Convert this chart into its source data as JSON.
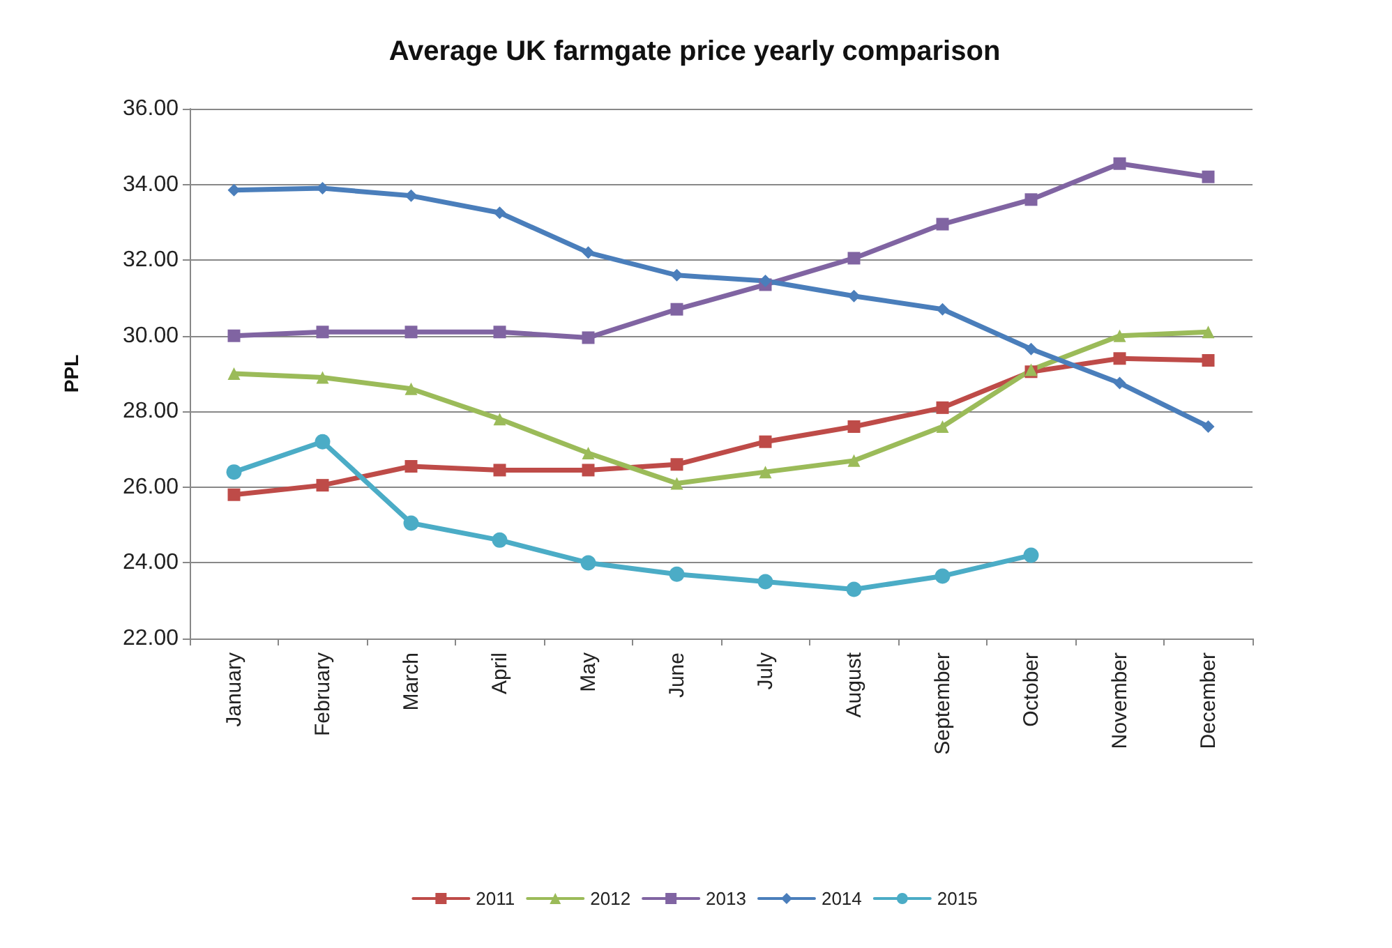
{
  "chart_data": {
    "type": "line",
    "title": "Average UK farmgate price yearly comparison",
    "ylabel": "PPL",
    "categories": [
      "January",
      "February",
      "March",
      "April",
      "May",
      "June",
      "July",
      "August",
      "September",
      "October",
      "November",
      "December"
    ],
    "series": [
      {
        "name": "2011",
        "color": "#be4b48",
        "marker": "square",
        "values": [
          25.8,
          26.05,
          26.55,
          26.45,
          26.45,
          26.6,
          27.2,
          27.6,
          28.1,
          29.05,
          29.4,
          29.35
        ]
      },
      {
        "name": "2012",
        "color": "#9bbb59",
        "marker": "triangle",
        "values": [
          29.0,
          28.9,
          28.6,
          27.8,
          26.9,
          26.1,
          26.4,
          26.7,
          27.6,
          29.1,
          30.0,
          30.1
        ]
      },
      {
        "name": "2013",
        "color": "#8064a2",
        "marker": "square",
        "values": [
          30.0,
          30.1,
          30.1,
          30.1,
          29.95,
          30.7,
          31.35,
          32.05,
          32.95,
          33.6,
          34.55,
          34.2
        ]
      },
      {
        "name": "2014",
        "color": "#4a7ebb",
        "marker": "diamond",
        "values": [
          33.85,
          33.9,
          33.7,
          33.25,
          32.2,
          31.6,
          31.45,
          31.05,
          30.7,
          29.65,
          28.75,
          27.6
        ]
      },
      {
        "name": "2015",
        "color": "#4bacc6",
        "marker": "circle",
        "values": [
          26.4,
          27.2,
          25.05,
          24.6,
          24.0,
          23.7,
          23.5,
          23.3,
          23.65,
          24.2,
          null,
          null
        ]
      }
    ],
    "ylim": [
      22,
      36
    ],
    "yticks": [
      {
        "value": 22,
        "label": "22.00"
      },
      {
        "value": 24,
        "label": "24.00"
      },
      {
        "value": 26,
        "label": "26.00"
      },
      {
        "value": 28,
        "label": "28.00"
      },
      {
        "value": 30,
        "label": "30.00"
      },
      {
        "value": 32,
        "label": "32.00"
      },
      {
        "value": 34,
        "label": "34.00"
      },
      {
        "value": 36,
        "label": "36.00"
      }
    ],
    "grid": "y",
    "legend": "bottom",
    "line_style": "solid"
  }
}
